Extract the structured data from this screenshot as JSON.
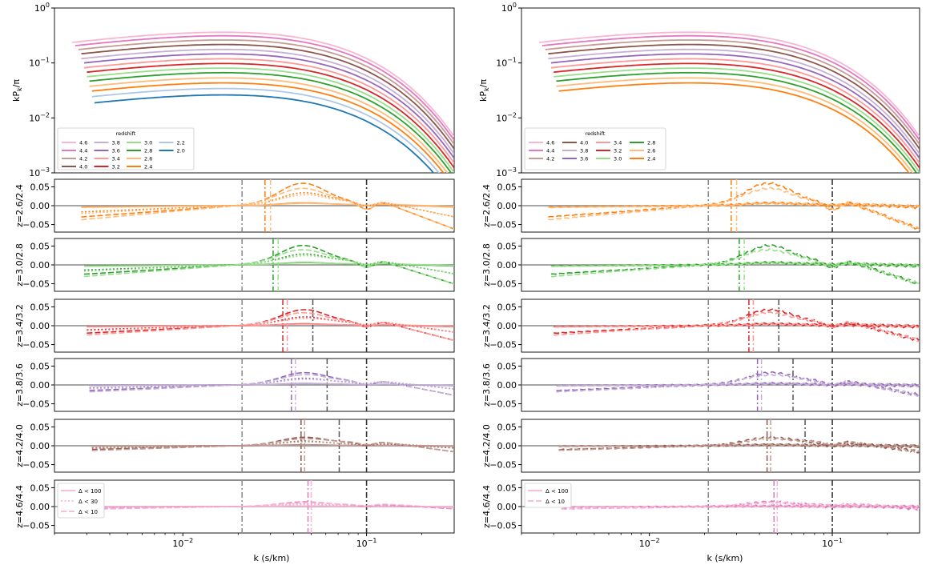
{
  "figure": {
    "x_label": "k (s/km)",
    "x_ticks": [
      {
        "base": "10",
        "exp": "−2",
        "value": 0.01
      },
      {
        "base": "10",
        "exp": "−1",
        "value": 0.1
      }
    ],
    "top_y_label": "kP",
    "top_y_label_sub": "k",
    "top_y_label_tail": "/π",
    "top_y_ticks": [
      {
        "base": "10",
        "exp": "0",
        "value": 1
      },
      {
        "base": "10",
        "exp": "−1",
        "value": 0.1
      },
      {
        "base": "10",
        "exp": "−2",
        "value": 0.01
      },
      {
        "base": "10",
        "exp": "−3",
        "value": 0.001
      }
    ],
    "ratio_y_ticks": [
      "0.05",
      "0.00",
      "−0.05"
    ],
    "legend_title": "redshift"
  },
  "chart_data": [
    {
      "type": "line",
      "panel": "left-top",
      "x_scale": "log",
      "y_scale": "log",
      "xlim": [
        0.002,
        0.3
      ],
      "ylim": [
        0.001,
        1
      ],
      "legend_position": "lower-left",
      "series": [
        {
          "name": "4.6",
          "color": "#f7b6d2",
          "k_start": 0.0025,
          "amplitude": 0.36
        },
        {
          "name": "4.4",
          "color": "#e377c2",
          "k_start": 0.0026,
          "amplitude": 0.31
        },
        {
          "name": "4.2",
          "color": "#c49c94",
          "k_start": 0.0027,
          "amplitude": 0.26
        },
        {
          "name": "4.0",
          "color": "#8c564b",
          "k_start": 0.0028,
          "amplitude": 0.215
        },
        {
          "name": "3.8",
          "color": "#c5b0d5",
          "k_start": 0.0028,
          "amplitude": 0.175
        },
        {
          "name": "3.6",
          "color": "#9467bd",
          "k_start": 0.0029,
          "amplitude": 0.145
        },
        {
          "name": "3.4",
          "color": "#ff9896",
          "k_start": 0.0029,
          "amplitude": 0.118
        },
        {
          "name": "3.2",
          "color": "#d62728",
          "k_start": 0.003,
          "amplitude": 0.097
        },
        {
          "name": "3.0",
          "color": "#98df8a",
          "k_start": 0.003,
          "amplitude": 0.08
        },
        {
          "name": "2.8",
          "color": "#2ca02c",
          "k_start": 0.0031,
          "amplitude": 0.066
        },
        {
          "name": "2.6",
          "color": "#ffbb78",
          "k_start": 0.0031,
          "amplitude": 0.053
        },
        {
          "name": "2.4",
          "color": "#ff7f0e",
          "k_start": 0.0032,
          "amplitude": 0.043
        },
        {
          "name": "2.2",
          "color": "#aec7e8",
          "k_start": 0.0032,
          "amplitude": 0.034
        },
        {
          "name": "2.0",
          "color": "#1f77b4",
          "k_start": 0.0033,
          "amplitude": 0.026
        }
      ]
    },
    {
      "type": "line",
      "panel": "right-top",
      "x_scale": "log",
      "y_scale": "log",
      "xlim": [
        0.002,
        0.3
      ],
      "ylim": [
        0.001,
        1
      ],
      "legend_position": "lower-left",
      "series": [
        {
          "name": "4.6",
          "color": "#f7b6d2",
          "k_start": 0.0025,
          "amplitude": 0.36
        },
        {
          "name": "4.4",
          "color": "#e377c2",
          "k_start": 0.0026,
          "amplitude": 0.31
        },
        {
          "name": "4.2",
          "color": "#c49c94",
          "k_start": 0.0027,
          "amplitude": 0.26
        },
        {
          "name": "4.0",
          "color": "#8c564b",
          "k_start": 0.0028,
          "amplitude": 0.215
        },
        {
          "name": "3.8",
          "color": "#c5b0d5",
          "k_start": 0.0028,
          "amplitude": 0.175
        },
        {
          "name": "3.6",
          "color": "#9467bd",
          "k_start": 0.0029,
          "amplitude": 0.145
        },
        {
          "name": "3.4",
          "color": "#ff9896",
          "k_start": 0.0029,
          "amplitude": 0.118
        },
        {
          "name": "3.2",
          "color": "#d62728",
          "k_start": 0.003,
          "amplitude": 0.097
        },
        {
          "name": "3.0",
          "color": "#98df8a",
          "k_start": 0.003,
          "amplitude": 0.08
        },
        {
          "name": "2.8",
          "color": "#2ca02c",
          "k_start": 0.0031,
          "amplitude": 0.066
        },
        {
          "name": "2.6",
          "color": "#ffbb78",
          "k_start": 0.0031,
          "amplitude": 0.053
        },
        {
          "name": "2.4",
          "color": "#ff7f0e",
          "k_start": 0.0032,
          "amplitude": 0.043
        }
      ]
    },
    {
      "type": "line",
      "panel": "ratio-panels",
      "x_scale": "log",
      "xlim": [
        0.002,
        0.3
      ],
      "ylim": [
        -0.07,
        0.07
      ],
      "grey_vline_k": 0.021,
      "black_vline_k": 0.1,
      "rows": [
        {
          "ylabel": "z=2.6/2.4",
          "light": "#ffbb78",
          "dark": "#ff7f0e",
          "vlines": [
            0.028,
            0.03
          ],
          "black2": null
        },
        {
          "ylabel": "z=3.0/2.8",
          "light": "#98df8a",
          "dark": "#2ca02c",
          "vlines": [
            0.031,
            0.033
          ],
          "black2": null
        },
        {
          "ylabel": "z=3.4/3.2",
          "light": "#ff9896",
          "dark": "#d62728",
          "vlines": [
            0.035,
            0.037
          ],
          "black2": 0.051
        },
        {
          "ylabel": "z=3.8/3.6",
          "light": "#c5b0d5",
          "dark": "#9467bd",
          "vlines": [
            0.039,
            0.041
          ],
          "black2": 0.061
        },
        {
          "ylabel": "z=4.2/4.0",
          "light": "#c49c94",
          "dark": "#8c564b",
          "vlines": [
            0.044,
            0.046
          ],
          "black2": 0.071
        },
        {
          "ylabel": "z=4.6/4.4",
          "light": "#f7b6d2",
          "dark": "#e377c2",
          "vlines": [
            0.048,
            0.05
          ],
          "black2": null
        }
      ],
      "left_legend": [
        {
          "label": "Δ < 100",
          "style": "solid"
        },
        {
          "label": "Δ < 30",
          "style": "dotted"
        },
        {
          "label": "Δ < 10",
          "style": "dashed"
        }
      ],
      "right_legend": [
        {
          "label": "Δ < 100",
          "style": "solid"
        },
        {
          "label": "Δ < 10",
          "style": "dashed"
        }
      ]
    }
  ]
}
